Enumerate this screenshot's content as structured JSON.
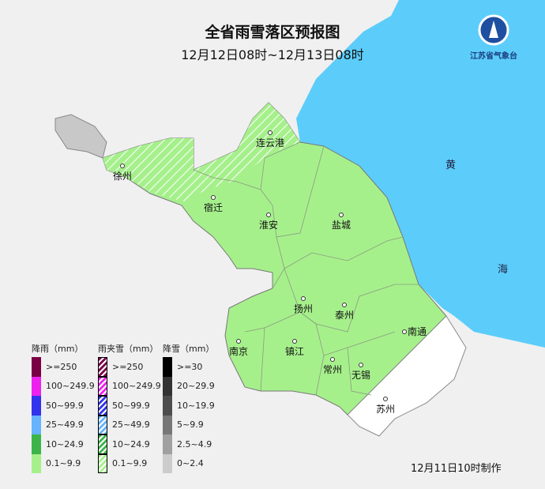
{
  "title": "全省雨雪落区预报图",
  "subtitle": "12月12日08时~12月13日08时",
  "logo": {
    "text": "江苏省气象台"
  },
  "sea_labels": [
    "黄",
    "海"
  ],
  "cities": [
    "连云港",
    "徐州",
    "宿迁",
    "淮安",
    "盐城",
    "扬州",
    "泰州",
    "南通",
    "南京",
    "镇江",
    "常州",
    "无锡",
    "苏州"
  ],
  "legend": {
    "rain": {
      "title": "降雨（mm）",
      "items": [
        {
          "label": ">=250",
          "color": "#7a0046"
        },
        {
          "label": "100~249.9",
          "color": "#ee22ee"
        },
        {
          "label": "50~99.9",
          "color": "#3333ee"
        },
        {
          "label": "25~49.9",
          "color": "#66b3ff"
        },
        {
          "label": "10~24.9",
          "color": "#3cb44a"
        },
        {
          "label": "0.1~9.9",
          "color": "#a6f08c"
        }
      ]
    },
    "sleet": {
      "title": "雨夹雪（mm）",
      "items": [
        {
          "label": ">=250",
          "color": "#7a0046"
        },
        {
          "label": "100~249.9",
          "color": "#ee22ee"
        },
        {
          "label": "50~99.9",
          "color": "#3333ee"
        },
        {
          "label": "25~49.9",
          "color": "#66b3ff"
        },
        {
          "label": "10~24.9",
          "color": "#3cb44a"
        },
        {
          "label": "0.1~9.9",
          "color": "#a6f08c"
        }
      ]
    },
    "snow": {
      "title": "降雪（mm）",
      "items": [
        {
          "label": ">=30",
          "color": "#000000"
        },
        {
          "label": "20~29.9",
          "color": "#333333"
        },
        {
          "label": "10~19.9",
          "color": "#4d4d4d"
        },
        {
          "label": "5~9.9",
          "color": "#777777"
        },
        {
          "label": "2.5~4.9",
          "color": "#a0a0a0"
        },
        {
          "label": "0~2.4",
          "color": "#cccccc"
        }
      ]
    }
  },
  "footer": "12月11日10时制作",
  "colors": {
    "sea": "#5ccdfa",
    "land": "#f0f0f0",
    "rain_light": "#a6f08c"
  }
}
